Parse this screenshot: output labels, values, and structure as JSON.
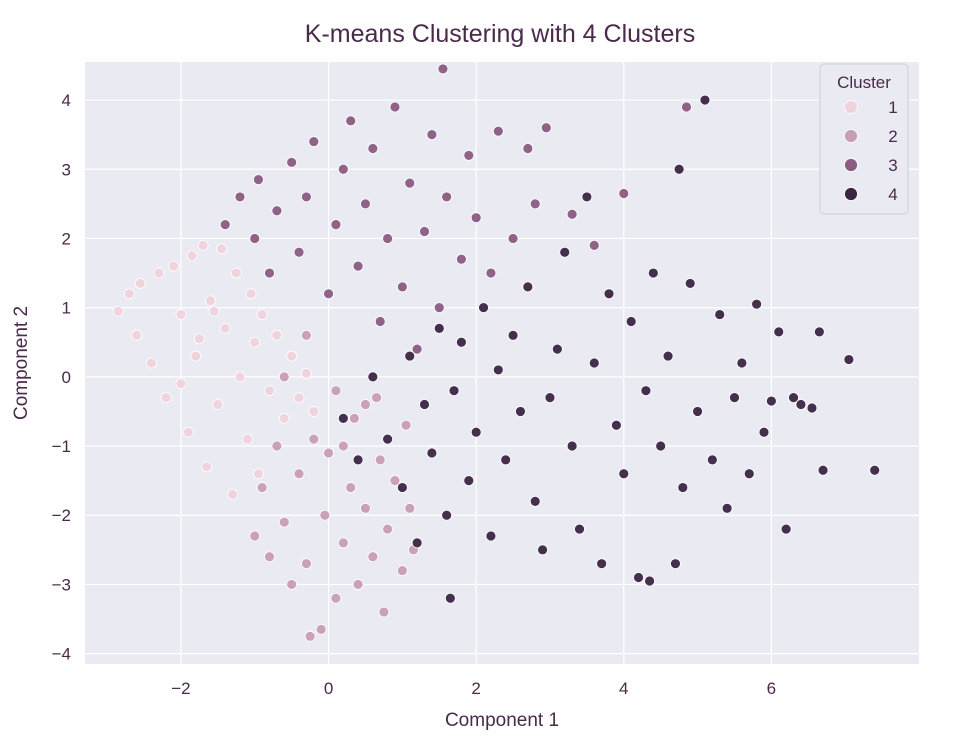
{
  "chart_data": {
    "type": "scatter",
    "title": "K-means Clustering with 4 Clusters",
    "xlabel": "Component 1",
    "ylabel": "Component 2",
    "xlim": [
      -3.3,
      8.0
    ],
    "ylim": [
      -4.15,
      4.55
    ],
    "xticks": [
      -2,
      0,
      2,
      4,
      6
    ],
    "xtick_labels": [
      "−2",
      "0",
      "2",
      "4",
      "6"
    ],
    "yticks": [
      -4,
      -3,
      -2,
      -1,
      0,
      1,
      2,
      3,
      4
    ],
    "ytick_labels": [
      "−4",
      "−3",
      "−2",
      "−1",
      "0",
      "1",
      "2",
      "3",
      "4"
    ],
    "grid": true,
    "background": "#eaeaf2",
    "legend": {
      "title": "Cluster",
      "placement": "top-right",
      "entries": [
        "1",
        "2",
        "3",
        "4"
      ]
    },
    "series": [
      {
        "name": "1",
        "color": "#efd3dc",
        "points": [
          [
            -2.85,
            0.95
          ],
          [
            -2.7,
            1.2
          ],
          [
            -2.6,
            0.6
          ],
          [
            -2.55,
            1.35
          ],
          [
            -2.4,
            0.2
          ],
          [
            -2.3,
            1.5
          ],
          [
            -2.2,
            -0.3
          ],
          [
            -2.1,
            1.6
          ],
          [
            -2.0,
            0.9
          ],
          [
            -1.9,
            -0.8
          ],
          [
            -1.85,
            1.75
          ],
          [
            -1.8,
            0.3
          ],
          [
            -1.7,
            1.9
          ],
          [
            -1.65,
            -1.3
          ],
          [
            -1.6,
            1.1
          ],
          [
            -1.5,
            -0.4
          ],
          [
            -1.45,
            1.85
          ],
          [
            -1.4,
            0.7
          ],
          [
            -1.3,
            -1.7
          ],
          [
            -1.25,
            1.5
          ],
          [
            -1.2,
            0.0
          ],
          [
            -1.1,
            -0.9
          ],
          [
            -1.05,
            1.2
          ],
          [
            -1.0,
            0.5
          ],
          [
            -0.95,
            -1.4
          ],
          [
            -0.9,
            0.9
          ],
          [
            -0.8,
            -0.2
          ],
          [
            -0.7,
            0.6
          ],
          [
            -0.6,
            -0.6
          ],
          [
            -0.5,
            0.3
          ],
          [
            -0.4,
            -0.3
          ],
          [
            -0.3,
            0.05
          ],
          [
            -0.2,
            -0.5
          ],
          [
            -2.0,
            -0.1
          ],
          [
            -1.75,
            0.55
          ],
          [
            -1.55,
            0.95
          ]
        ]
      },
      {
        "name": "2",
        "color": "#c99cb6",
        "points": [
          [
            -1.0,
            -2.3
          ],
          [
            -0.9,
            -1.6
          ],
          [
            -0.8,
            -2.6
          ],
          [
            -0.7,
            -1.0
          ],
          [
            -0.6,
            -2.1
          ],
          [
            -0.5,
            -3.0
          ],
          [
            -0.4,
            -1.4
          ],
          [
            -0.3,
            -2.7
          ],
          [
            -0.25,
            -3.75
          ],
          [
            -0.2,
            -0.9
          ],
          [
            -0.1,
            -3.65
          ],
          [
            -0.05,
            -2.0
          ],
          [
            0.0,
            -1.1
          ],
          [
            0.1,
            -3.2
          ],
          [
            0.2,
            -2.4
          ],
          [
            0.3,
            -1.6
          ],
          [
            0.35,
            -0.6
          ],
          [
            0.4,
            -3.0
          ],
          [
            0.5,
            -1.9
          ],
          [
            0.6,
            -2.6
          ],
          [
            0.65,
            -0.3
          ],
          [
            0.7,
            -1.2
          ],
          [
            0.75,
            -3.4
          ],
          [
            0.8,
            -2.2
          ],
          [
            0.9,
            -1.5
          ],
          [
            1.0,
            -2.8
          ],
          [
            1.05,
            -0.7
          ],
          [
            1.1,
            -1.9
          ],
          [
            1.15,
            -2.5
          ],
          [
            -0.6,
            0.0
          ],
          [
            -0.3,
            0.6
          ],
          [
            0.1,
            -0.2
          ],
          [
            0.2,
            -1.0
          ],
          [
            0.5,
            -0.4
          ]
        ]
      },
      {
        "name": "3",
        "color": "#8c5b82",
        "points": [
          [
            -1.4,
            2.2
          ],
          [
            -1.2,
            2.6
          ],
          [
            -1.0,
            2.0
          ],
          [
            -0.95,
            2.85
          ],
          [
            -0.8,
            1.5
          ],
          [
            -0.7,
            2.4
          ],
          [
            -0.5,
            3.1
          ],
          [
            -0.4,
            1.8
          ],
          [
            -0.3,
            2.6
          ],
          [
            -0.2,
            3.4
          ],
          [
            0.0,
            1.2
          ],
          [
            0.1,
            2.2
          ],
          [
            0.2,
            3.0
          ],
          [
            0.3,
            3.7
          ],
          [
            0.4,
            1.6
          ],
          [
            0.5,
            2.5
          ],
          [
            0.6,
            3.3
          ],
          [
            0.7,
            0.8
          ],
          [
            0.8,
            2.0
          ],
          [
            0.9,
            3.9
          ],
          [
            1.0,
            1.3
          ],
          [
            1.1,
            2.8
          ],
          [
            1.2,
            0.4
          ],
          [
            1.3,
            2.1
          ],
          [
            1.4,
            3.5
          ],
          [
            1.5,
            1.0
          ],
          [
            1.55,
            4.45
          ],
          [
            1.6,
            2.6
          ],
          [
            1.8,
            1.7
          ],
          [
            1.9,
            3.2
          ],
          [
            2.0,
            2.3
          ],
          [
            2.2,
            1.5
          ],
          [
            2.3,
            3.55
          ],
          [
            2.5,
            2.0
          ],
          [
            2.7,
            3.3
          ],
          [
            2.8,
            2.5
          ],
          [
            2.95,
            3.6
          ],
          [
            3.3,
            2.35
          ],
          [
            3.6,
            1.9
          ],
          [
            4.0,
            2.65
          ],
          [
            4.85,
            3.9
          ]
        ]
      },
      {
        "name": "4",
        "color": "#3b2542",
        "points": [
          [
            0.2,
            -0.6
          ],
          [
            0.4,
            -1.2
          ],
          [
            0.6,
            0.0
          ],
          [
            0.8,
            -0.9
          ],
          [
            1.0,
            -1.6
          ],
          [
            1.1,
            0.3
          ],
          [
            1.2,
            -2.4
          ],
          [
            1.3,
            -0.4
          ],
          [
            1.4,
            -1.1
          ],
          [
            1.5,
            0.7
          ],
          [
            1.6,
            -2.0
          ],
          [
            1.65,
            -3.2
          ],
          [
            1.7,
            -0.2
          ],
          [
            1.8,
            0.5
          ],
          [
            1.9,
            -1.5
          ],
          [
            2.0,
            -0.8
          ],
          [
            2.1,
            1.0
          ],
          [
            2.2,
            -2.3
          ],
          [
            2.3,
            0.1
          ],
          [
            2.4,
            -1.2
          ],
          [
            2.5,
            0.6
          ],
          [
            2.6,
            -0.5
          ],
          [
            2.7,
            1.3
          ],
          [
            2.8,
            -1.8
          ],
          [
            2.9,
            -2.5
          ],
          [
            3.0,
            -0.3
          ],
          [
            3.1,
            0.4
          ],
          [
            3.2,
            1.8
          ],
          [
            3.3,
            -1.0
          ],
          [
            3.4,
            -2.2
          ],
          [
            3.5,
            2.6
          ],
          [
            3.6,
            0.2
          ],
          [
            3.7,
            -2.7
          ],
          [
            3.8,
            1.2
          ],
          [
            3.9,
            -0.7
          ],
          [
            4.0,
            -1.4
          ],
          [
            4.1,
            0.8
          ],
          [
            4.2,
            -2.9
          ],
          [
            4.3,
            -0.2
          ],
          [
            4.35,
            -2.95
          ],
          [
            4.4,
            1.5
          ],
          [
            4.5,
            -1.0
          ],
          [
            4.6,
            0.3
          ],
          [
            4.7,
            -2.7
          ],
          [
            4.75,
            3.0
          ],
          [
            4.8,
            -1.6
          ],
          [
            4.9,
            1.35
          ],
          [
            5.0,
            -0.5
          ],
          [
            5.1,
            4.0
          ],
          [
            5.2,
            -1.2
          ],
          [
            5.3,
            0.9
          ],
          [
            5.4,
            -1.9
          ],
          [
            5.5,
            -0.3
          ],
          [
            5.6,
            0.2
          ],
          [
            5.7,
            -1.4
          ],
          [
            5.8,
            1.05
          ],
          [
            5.9,
            -0.8
          ],
          [
            6.0,
            -0.35
          ],
          [
            6.1,
            0.65
          ],
          [
            6.2,
            -2.2
          ],
          [
            6.3,
            -0.3
          ],
          [
            6.4,
            -0.4
          ],
          [
            6.55,
            -0.45
          ],
          [
            6.65,
            0.65
          ],
          [
            6.7,
            -1.35
          ],
          [
            7.05,
            0.25
          ],
          [
            7.4,
            -1.35
          ]
        ]
      }
    ]
  }
}
